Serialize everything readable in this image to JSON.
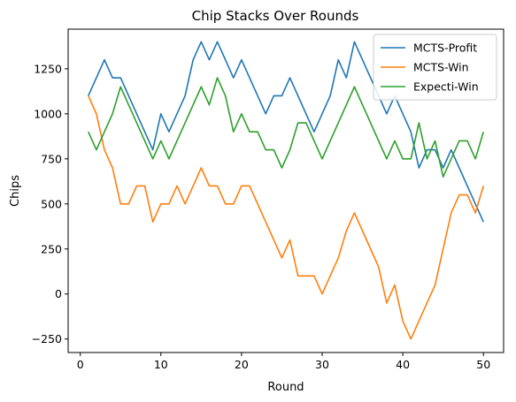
{
  "chart_data": {
    "type": "line",
    "title": "Chip Stacks Over Rounds",
    "xlabel": "Round",
    "ylabel": "Chips",
    "xlim": [
      -1.5,
      52.5
    ],
    "ylim": [
      -325,
      1470
    ],
    "x_ticks": [
      0,
      10,
      20,
      30,
      40,
      50
    ],
    "y_ticks": [
      -250,
      0,
      250,
      500,
      750,
      1000,
      1250
    ],
    "grid": false,
    "legend_position": "top-right",
    "x": [
      1,
      2,
      3,
      4,
      5,
      6,
      7,
      8,
      9,
      10,
      11,
      12,
      13,
      14,
      15,
      16,
      17,
      18,
      19,
      20,
      21,
      22,
      23,
      24,
      25,
      26,
      27,
      28,
      29,
      30,
      31,
      32,
      33,
      34,
      35,
      36,
      37,
      38,
      39,
      40,
      41,
      42,
      43,
      44,
      45,
      46,
      47,
      48,
      49,
      50
    ],
    "series": [
      {
        "name": "MCTS-Profit",
        "color": "#1f77b4",
        "values": [
          1100,
          1200,
          1300,
          1200,
          1200,
          1100,
          1000,
          900,
          800,
          1000,
          900,
          1000,
          1100,
          1300,
          1400,
          1300,
          1400,
          1300,
          1200,
          1300,
          1200,
          1100,
          1000,
          1100,
          1100,
          1200,
          1100,
          1000,
          900,
          1000,
          1100,
          1300,
          1200,
          1400,
          1300,
          1200,
          1100,
          1000,
          1100,
          1000,
          900,
          700,
          800,
          800,
          700,
          800,
          700,
          600,
          500,
          400
        ]
      },
      {
        "name": "MCTS-Win",
        "color": "#ff7f0e",
        "values": [
          1100,
          1000,
          800,
          700,
          500,
          500,
          600,
          600,
          400,
          500,
          500,
          600,
          500,
          600,
          700,
          600,
          600,
          500,
          500,
          600,
          600,
          500,
          400,
          300,
          200,
          300,
          100,
          100,
          100,
          0,
          100,
          200,
          350,
          450,
          350,
          250,
          150,
          -50,
          50,
          -150,
          -250,
          -150,
          -50,
          50,
          250,
          450,
          550,
          550,
          450,
          600
        ]
      },
      {
        "name": "Expecti-Win",
        "color": "#2ca02c",
        "values": [
          900,
          800,
          900,
          1000,
          1150,
          1050,
          950,
          850,
          750,
          850,
          750,
          850,
          950,
          1050,
          1150,
          1050,
          1200,
          1100,
          900,
          1000,
          900,
          900,
          800,
          800,
          700,
          800,
          950,
          950,
          850,
          750,
          850,
          950,
          1050,
          1150,
          1050,
          950,
          850,
          750,
          850,
          750,
          750,
          950,
          750,
          850,
          650,
          750,
          850,
          850,
          750,
          900
        ]
      }
    ]
  }
}
